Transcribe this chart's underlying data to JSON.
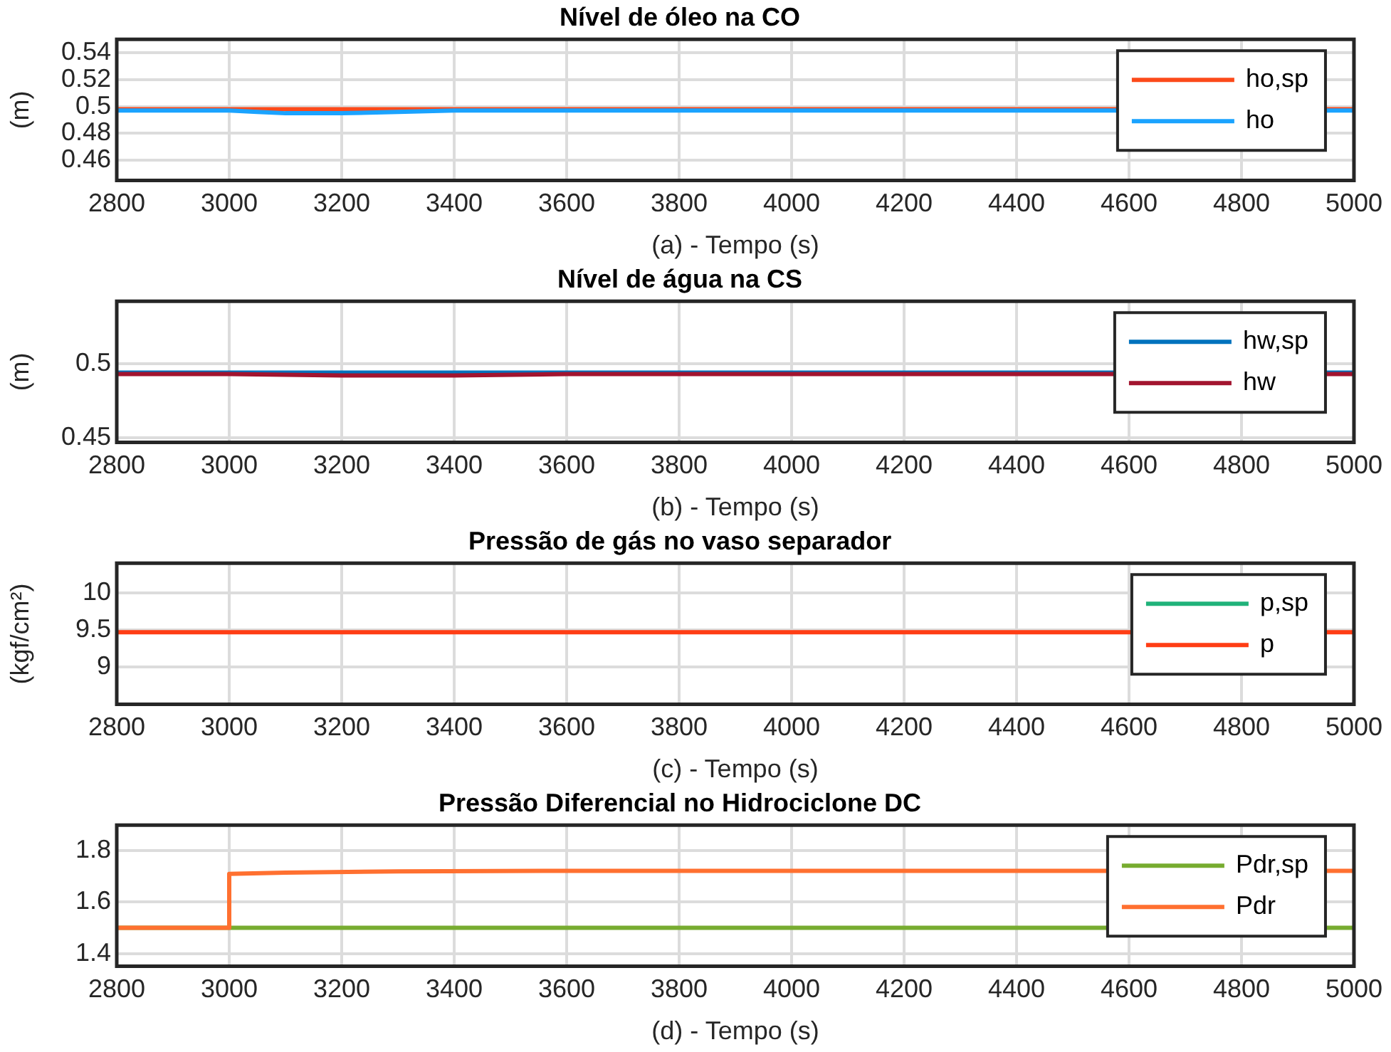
{
  "chart_data": [
    {
      "type": "line",
      "title": "Nível de óleo na CO",
      "xlabel": "(a) - Tempo (s)",
      "ylabel": "(m)",
      "xlim": [
        2800,
        5000
      ],
      "xticks": [
        2800,
        3000,
        3200,
        3400,
        3600,
        3800,
        4000,
        4200,
        4400,
        4600,
        4800,
        5000
      ],
      "ylim": [
        0.445,
        0.55
      ],
      "yticks": [
        0.46,
        0.48,
        0.5,
        0.52,
        0.54
      ],
      "grid": true,
      "legend": "top right",
      "marker": "none",
      "line_style": "solid",
      "series": [
        {
          "name": "ho,sp",
          "color": "#fc4a1a",
          "x": [
            2800,
            5000
          ],
          "values": [
            0.498,
            0.498
          ]
        },
        {
          "name": "ho",
          "color": "#1aa3ff",
          "x": [
            2800,
            3000,
            3050,
            3100,
            3150,
            3200,
            3300,
            3400,
            3600,
            5000
          ],
          "values": [
            0.497,
            0.497,
            0.496,
            0.495,
            0.495,
            0.495,
            0.496,
            0.497,
            0.497,
            0.497
          ]
        }
      ]
    },
    {
      "type": "line",
      "title": "Nível de água na CS",
      "xlabel": "(b) - Tempo (s)",
      "ylabel": "(m)",
      "xlim": [
        2800,
        5000
      ],
      "xticks": [
        2800,
        3000,
        3200,
        3400,
        3600,
        3800,
        4000,
        4200,
        4400,
        4600,
        4800,
        5000
      ],
      "ylim": [
        0.447,
        0.542
      ],
      "yticks": [
        0.45,
        0.5
      ],
      "grid": true,
      "legend": "top right",
      "marker": "none",
      "line_style": "solid",
      "series": [
        {
          "name": "hw,sp",
          "color": "#0072bd",
          "x": [
            2800,
            5000
          ],
          "values": [
            0.494,
            0.494
          ]
        },
        {
          "name": "hw",
          "color": "#a2142f",
          "x": [
            2800,
            3000,
            3200,
            3400,
            3600,
            5000
          ],
          "values": [
            0.493,
            0.493,
            0.492,
            0.492,
            0.493,
            0.493
          ]
        }
      ]
    },
    {
      "type": "line",
      "title": "Pressão de gás no vaso separador",
      "xlabel": "(c) - Tempo (s)",
      "ylabel": "(kgf/cm²)",
      "xlim": [
        2800,
        5000
      ],
      "xticks": [
        2800,
        3000,
        3200,
        3400,
        3600,
        3800,
        4000,
        4200,
        4400,
        4600,
        4800,
        5000
      ],
      "ylim": [
        8.5,
        10.4
      ],
      "yticks": [
        9,
        9.5,
        10
      ],
      "grid": true,
      "legend": "top right",
      "marker": "none",
      "line_style": "solid",
      "series": [
        {
          "name": "p,sp",
          "color": "#20b27a"
        },
        {
          "name": "p",
          "color": "#ff3d14",
          "x": [
            2800,
            5000
          ],
          "values": [
            9.47,
            9.47
          ]
        }
      ]
    },
    {
      "type": "line",
      "title": "Pressão Diferencial no Hidrociclone DC",
      "xlabel": "(d) - Tempo (s)",
      "xlim": [
        2800,
        5000
      ],
      "xticks": [
        2800,
        3000,
        3200,
        3400,
        3600,
        3800,
        4000,
        4200,
        4400,
        4600,
        4800,
        5000
      ],
      "ylim": [
        1.35,
        1.9
      ],
      "yticks": [
        1.4,
        1.6,
        1.8
      ],
      "grid": true,
      "legend": "top right",
      "marker": "none",
      "line_style": "solid",
      "series": [
        {
          "name": "Pdr,sp",
          "color": "#77ac30",
          "x": [
            2800,
            5000
          ],
          "values": [
            1.5,
            1.5
          ]
        },
        {
          "name": "Pdr",
          "color": "#ff7030",
          "x": [
            2800,
            3000,
            3000,
            3100,
            3300,
            3600,
            5000
          ],
          "values": [
            1.5,
            1.5,
            1.71,
            1.715,
            1.72,
            1.722,
            1.722
          ]
        }
      ]
    }
  ]
}
